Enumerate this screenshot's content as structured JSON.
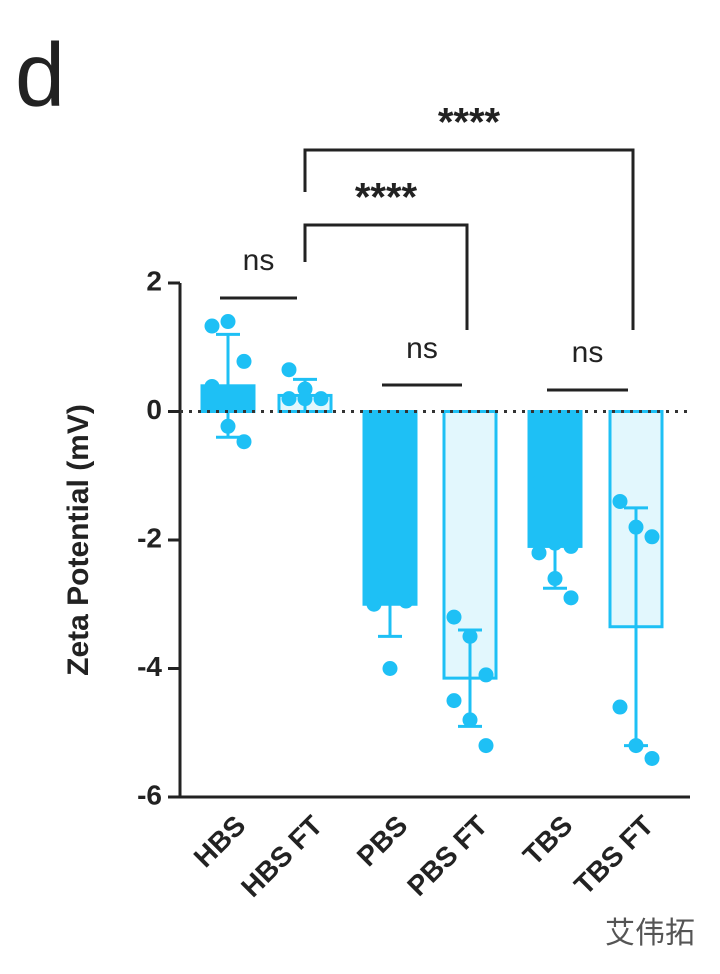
{
  "panel_label": "d",
  "chart_data": {
    "type": "bar",
    "y_label": "Zeta Potential (mV)",
    "categories": [
      "HBS",
      "HBS FT",
      "PBS",
      "PBS FT",
      "TBS",
      "TBS FT"
    ],
    "values": [
      0.4,
      0.25,
      -3.0,
      -4.15,
      -2.1,
      -3.35
    ],
    "errors": [
      0.8,
      0.25,
      0.5,
      0.75,
      0.65,
      1.85
    ],
    "points": [
      [
        1.33,
        1.4,
        0.78,
        0.39,
        -0.23,
        -0.47
      ],
      [
        0.65,
        0.35,
        0.2,
        0.2,
        0.2
      ],
      [
        -2.55,
        -2.9,
        -2.95,
        -3.0,
        -4.0
      ],
      [
        -3.2,
        -3.5,
        -4.1,
        -4.5,
        -4.8,
        -5.2
      ],
      [
        -1.1,
        -2.05,
        -2.1,
        -2.2,
        -2.6,
        -2.9
      ],
      [
        -1.4,
        -1.8,
        -1.95,
        -4.6,
        -5.2,
        -5.4
      ]
    ],
    "fill_colors": [
      "#1ec0f5",
      "#e2f7fd",
      "#1ec0f5",
      "#e2f7fd",
      "#1ec0f5",
      "#e2f7fd"
    ],
    "color": "#1ec0f5",
    "ylim": [
      -6,
      2
    ],
    "yticks": [
      -6,
      -4,
      -2,
      0,
      2
    ],
    "zero_line": "dotted",
    "comparisons": [
      {
        "label": "ns",
        "between": [
          "HBS",
          "HBS FT"
        ]
      },
      {
        "label": "ns",
        "between": [
          "PBS",
          "PBS FT"
        ]
      },
      {
        "label": "ns",
        "between": [
          "TBS",
          "TBS FT"
        ]
      },
      {
        "label": "****",
        "between": [
          "HBS FT",
          "PBS FT"
        ]
      },
      {
        "label": "****",
        "between": [
          "HBS FT",
          "TBS FT"
        ]
      }
    ]
  },
  "watermark": "艾伟拓"
}
